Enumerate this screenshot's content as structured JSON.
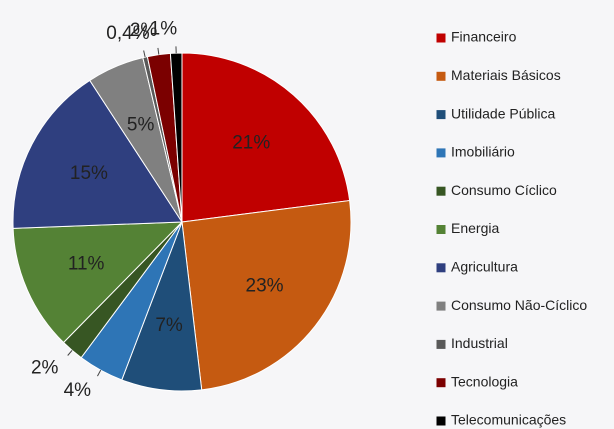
{
  "chart_data": {
    "type": "pie",
    "categories": [
      "Financeiro",
      "Materiais Básicos",
      "Utilidade Pública",
      "Imobiliário",
      "Consumo Cíclico",
      "Energia",
      "Agricultura",
      "Consumo Não-Cíclico",
      "Industrial",
      "Tecnologia",
      "Telecomunicações"
    ],
    "values": [
      21,
      23,
      7,
      4,
      2,
      11,
      15,
      5,
      0.4,
      2,
      1
    ],
    "value_labels": [
      "21%",
      "23%",
      "7%",
      "4%",
      "2%",
      "11%",
      "15%",
      "5%",
      "0,4%",
      "2%",
      "1%"
    ],
    "colors": [
      "#c00000",
      "#c55a11",
      "#1f4e79",
      "#2e75b6",
      "#375623",
      "#548235",
      "#2f3f7f",
      "#808080",
      "#595959",
      "#7b0000",
      "#000000"
    ],
    "legend": "right"
  }
}
